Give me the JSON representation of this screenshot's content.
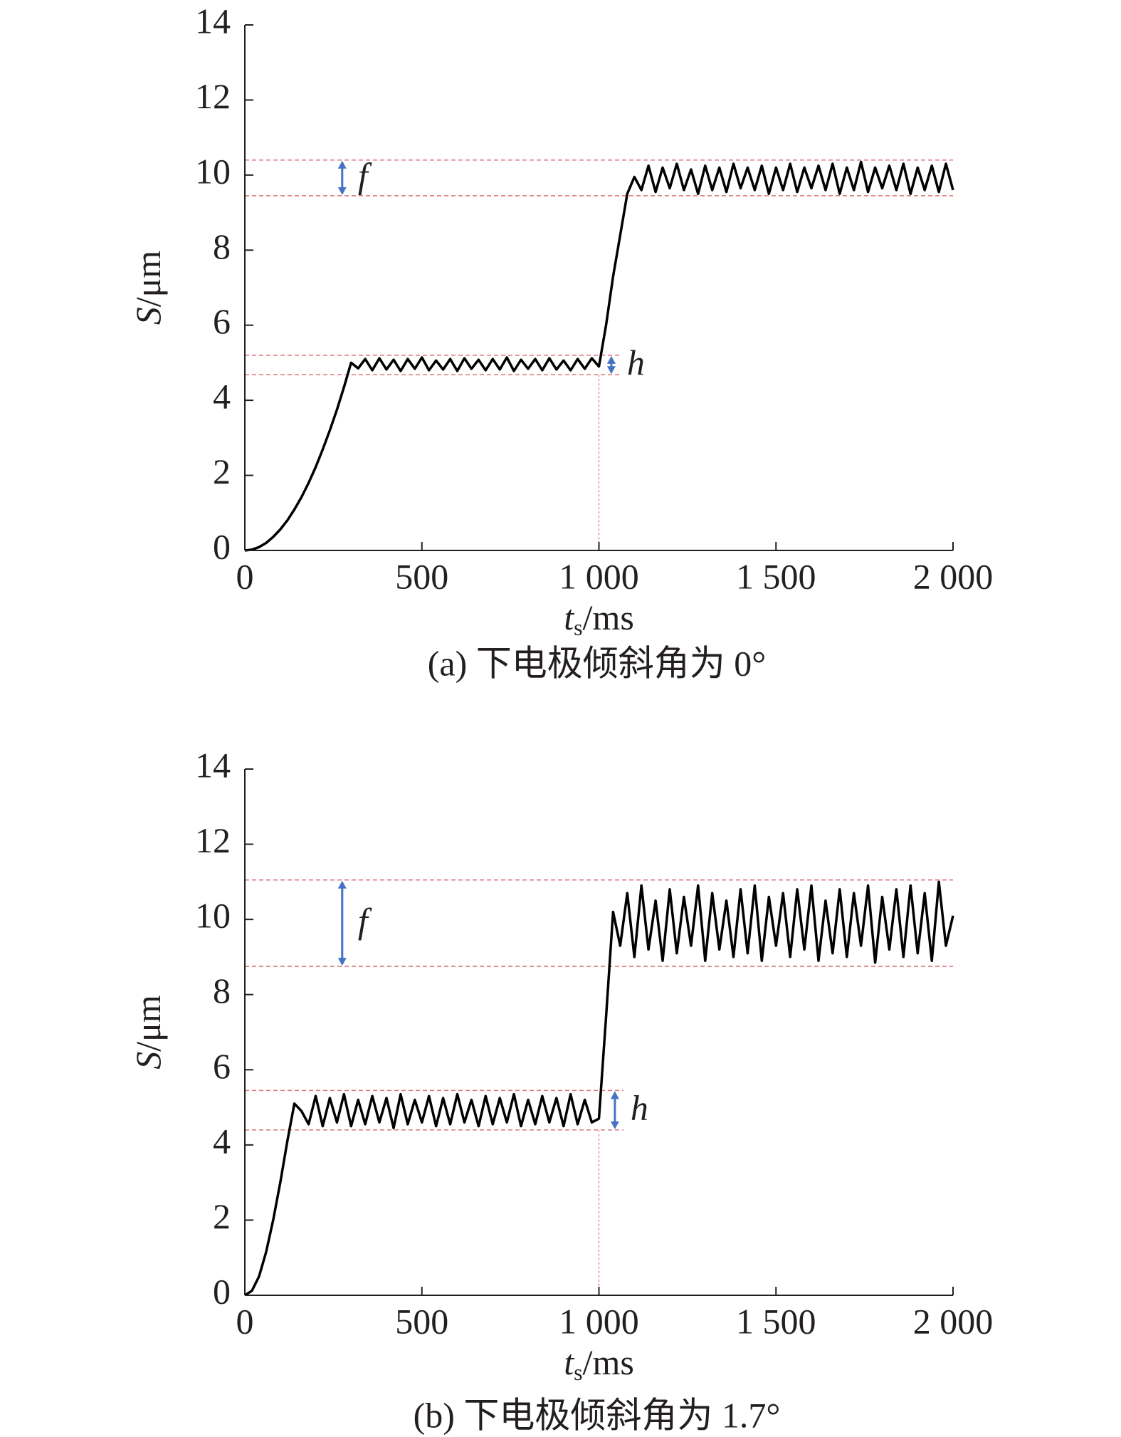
{
  "chart_data": [
    {
      "type": "line",
      "caption": "(a) 下电极倾斜角为 0°",
      "xlabel": {
        "main": "t",
        "sub": "s",
        "unit": "/ms"
      },
      "ylabel": {
        "main": "S",
        "unit": "/μm"
      },
      "xlim": [
        0,
        2000
      ],
      "ylim": [
        0,
        14
      ],
      "xticks": [
        0,
        500,
        {
          "value": 1000,
          "label": "1 000"
        },
        {
          "value": 1500,
          "label": "1 500"
        },
        {
          "value": 2000,
          "label": "2 000"
        }
      ],
      "yticks": [
        0,
        2,
        4,
        6,
        8,
        10,
        12,
        14
      ],
      "color": "#000000",
      "x": [
        0,
        20,
        40,
        60,
        80,
        100,
        120,
        140,
        160,
        180,
        200,
        220,
        240,
        260,
        280,
        300,
        320,
        340,
        360,
        380,
        400,
        420,
        440,
        460,
        480,
        500,
        520,
        540,
        560,
        580,
        600,
        620,
        640,
        660,
        680,
        700,
        720,
        740,
        760,
        780,
        800,
        820,
        840,
        860,
        880,
        900,
        920,
        940,
        960,
        980,
        1000,
        1020,
        1040,
        1060,
        1080,
        1100,
        1120,
        1140,
        1160,
        1180,
        1200,
        1220,
        1240,
        1260,
        1280,
        1300,
        1320,
        1340,
        1360,
        1380,
        1400,
        1420,
        1440,
        1460,
        1480,
        1500,
        1520,
        1540,
        1560,
        1580,
        1600,
        1620,
        1640,
        1660,
        1680,
        1700,
        1720,
        1740,
        1760,
        1780,
        1800,
        1820,
        1840,
        1860,
        1880,
        1900,
        1920,
        1940,
        1960,
        1980,
        2000
      ],
      "values": [
        0,
        0.02,
        0.09,
        0.2,
        0.36,
        0.56,
        0.8,
        1.09,
        1.42,
        1.8,
        2.22,
        2.69,
        3.2,
        3.75,
        4.35,
        5.0,
        4.85,
        5.1,
        4.8,
        5.12,
        4.82,
        5.08,
        4.78,
        5.1,
        4.84,
        5.14,
        4.8,
        5.06,
        4.82,
        5.1,
        4.78,
        5.12,
        4.84,
        5.08,
        4.8,
        5.1,
        4.82,
        5.14,
        4.78,
        5.08,
        4.84,
        5.1,
        4.8,
        5.12,
        4.82,
        5.06,
        4.8,
        5.1,
        4.84,
        5.12,
        4.9,
        6.0,
        7.3,
        8.4,
        9.5,
        9.95,
        9.6,
        10.25,
        9.55,
        10.2,
        9.65,
        10.3,
        9.6,
        10.15,
        9.5,
        10.25,
        9.6,
        10.2,
        9.55,
        10.3,
        9.65,
        10.2,
        9.6,
        10.25,
        9.5,
        10.2,
        9.6,
        10.3,
        9.55,
        10.2,
        9.65,
        10.25,
        9.6,
        10.3,
        9.5,
        10.2,
        9.6,
        10.35,
        9.55,
        10.2,
        9.65,
        10.25,
        9.6,
        10.3,
        9.5,
        10.2,
        9.6,
        10.25,
        9.55,
        10.3,
        9.6
      ],
      "annotations": [
        {
          "text": "f",
          "x": 275,
          "y_range": [
            10.4,
            9.45
          ]
        },
        {
          "text": "h",
          "x": 1035,
          "y_range": [
            5.2,
            4.68
          ]
        }
      ],
      "vline": 1000
    },
    {
      "type": "line",
      "caption": "(b) 下电极倾斜角为 1.7°",
      "xlabel": {
        "main": "t",
        "sub": "s",
        "unit": "/ms"
      },
      "ylabel": {
        "main": "S",
        "unit": "/μm"
      },
      "xlim": [
        0,
        2000
      ],
      "ylim": [
        0,
        14
      ],
      "xticks": [
        0,
        500,
        {
          "value": 1000,
          "label": "1 000"
        },
        {
          "value": 1500,
          "label": "1 500"
        },
        {
          "value": 2000,
          "label": "2 000"
        }
      ],
      "yticks": [
        0,
        2,
        4,
        6,
        8,
        10,
        12,
        14
      ],
      "color": "#000000",
      "x": [
        0,
        20,
        40,
        60,
        80,
        100,
        120,
        140,
        160,
        180,
        200,
        220,
        240,
        260,
        280,
        300,
        320,
        340,
        360,
        380,
        400,
        420,
        440,
        460,
        480,
        500,
        520,
        540,
        560,
        580,
        600,
        620,
        640,
        660,
        680,
        700,
        720,
        740,
        760,
        780,
        800,
        820,
        840,
        860,
        880,
        900,
        920,
        940,
        960,
        980,
        1000,
        1020,
        1040,
        1060,
        1080,
        1100,
        1120,
        1140,
        1160,
        1180,
        1200,
        1220,
        1240,
        1260,
        1280,
        1300,
        1320,
        1340,
        1360,
        1380,
        1400,
        1420,
        1440,
        1460,
        1480,
        1500,
        1520,
        1540,
        1560,
        1580,
        1600,
        1620,
        1640,
        1660,
        1680,
        1700,
        1720,
        1740,
        1760,
        1780,
        1800,
        1820,
        1840,
        1860,
        1880,
        1900,
        1920,
        1940,
        1960,
        1980,
        2000
      ],
      "values": [
        0,
        0.12,
        0.5,
        1.15,
        2.0,
        3.0,
        4.1,
        5.1,
        4.9,
        4.55,
        5.3,
        4.5,
        5.25,
        4.6,
        5.35,
        4.5,
        5.2,
        4.55,
        5.3,
        4.6,
        5.25,
        4.45,
        5.35,
        4.55,
        5.2,
        4.6,
        5.3,
        4.5,
        5.25,
        4.55,
        5.35,
        4.6,
        5.2,
        4.5,
        5.3,
        4.55,
        5.25,
        4.6,
        5.35,
        4.5,
        5.2,
        4.55,
        5.3,
        4.6,
        5.25,
        4.5,
        5.35,
        4.55,
        5.2,
        4.6,
        4.7,
        7.4,
        10.2,
        9.3,
        10.7,
        9.0,
        10.9,
        9.2,
        10.5,
        8.9,
        10.8,
        9.1,
        10.6,
        9.3,
        10.9,
        8.9,
        10.7,
        9.2,
        10.5,
        9.0,
        10.8,
        9.1,
        10.9,
        8.9,
        10.6,
        9.3,
        10.7,
        9.0,
        10.8,
        9.2,
        10.9,
        8.9,
        10.5,
        9.1,
        10.8,
        9.0,
        10.7,
        9.3,
        10.9,
        8.85,
        10.6,
        9.2,
        10.8,
        9.0,
        10.9,
        9.1,
        10.7,
        8.9,
        11.0,
        9.3,
        10.1
      ],
      "annotations": [
        {
          "text": "f",
          "x": 275,
          "y_range": [
            11.05,
            8.75
          ]
        },
        {
          "text": "h",
          "x": 1045,
          "y_range": [
            5.45,
            4.4
          ]
        }
      ],
      "vline": 1000
    }
  ]
}
